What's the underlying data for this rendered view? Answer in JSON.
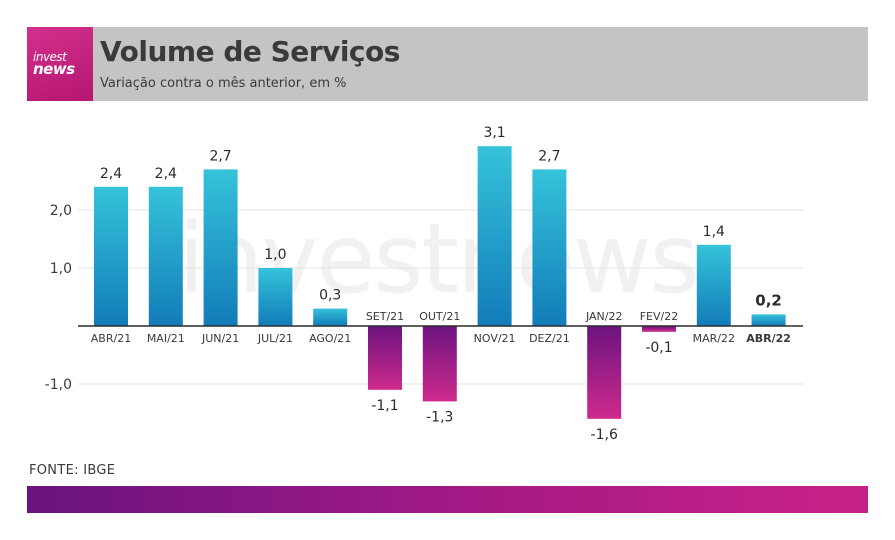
{
  "header": {
    "logo_line1": "invest",
    "logo_line2": "news",
    "title": "Volume de Serviços",
    "subtitle": "Variação contra o mês anterior, em %"
  },
  "watermark": "investnews",
  "source": "FONTE: IBGE",
  "colors": {
    "positive_top": "#35c3da",
    "positive_bottom": "#127cb9",
    "negative_top": "#6c137f",
    "negative_bottom": "#cf2a8c",
    "header_bg": "#c4c4c4",
    "logo_bg": "#c5237f"
  },
  "chart_data": {
    "type": "bar",
    "categories": [
      "ABR/21",
      "MAI/21",
      "JUN/21",
      "JUL/21",
      "AGO/21",
      "SET/21",
      "OUT/21",
      "NOV/21",
      "DEZ/21",
      "JAN/22",
      "FEV/22",
      "MAR/22",
      "ABR/22"
    ],
    "values": [
      2.4,
      2.4,
      2.7,
      1.0,
      0.3,
      -1.1,
      -1.3,
      3.1,
      2.7,
      -1.6,
      -0.1,
      1.4,
      0.2
    ],
    "value_labels": [
      "2,4",
      "2,4",
      "2,7",
      "1,0",
      "0,3",
      "-1,1",
      "-1,3",
      "3,1",
      "2,7",
      "-1,6",
      "-0,1",
      "1,4",
      "0,2"
    ],
    "yticks": [
      2.0,
      1.0,
      -1.0
    ],
    "ytick_labels": [
      "2,0",
      "1,0",
      "-1,0"
    ],
    "ylim": [
      -1.9,
      3.4
    ],
    "highlight_index": 12,
    "grid": true
  }
}
